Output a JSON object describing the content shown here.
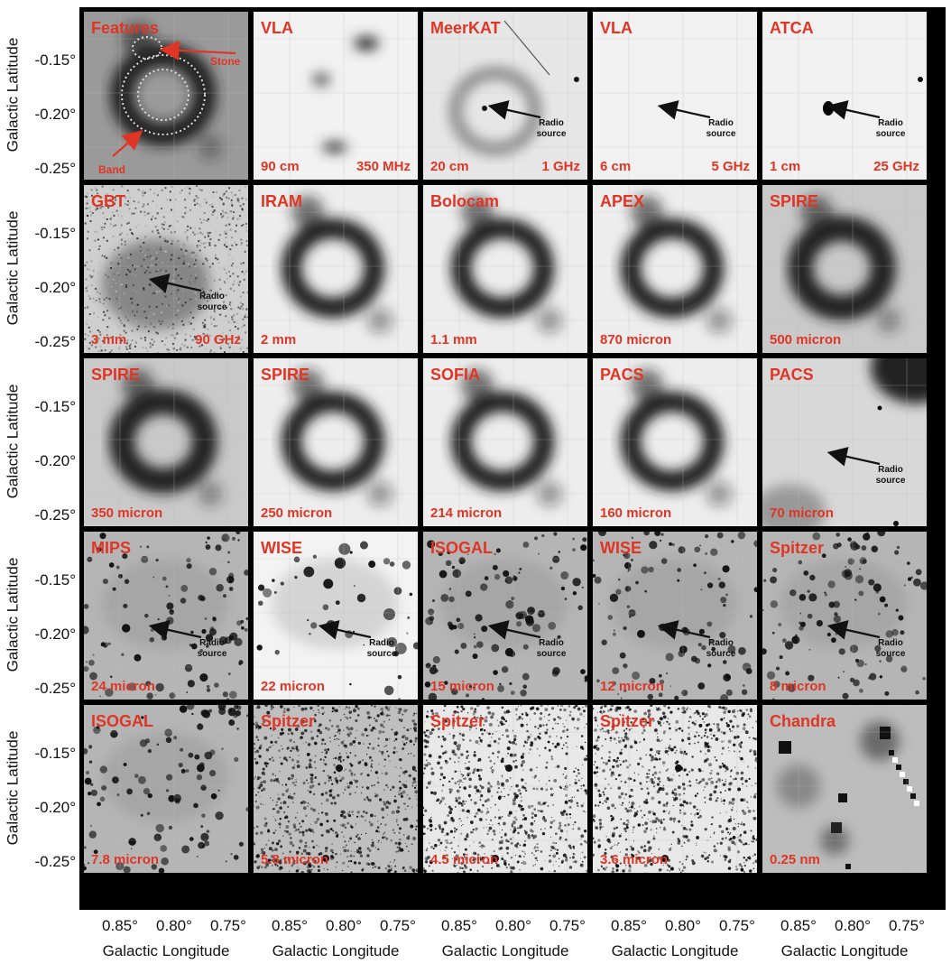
{
  "axes": {
    "ylabel": "Galactic Latitude",
    "xlabel": "Galactic Longitude",
    "yticks": [
      "-0.15°",
      "-0.20°",
      "-0.25°"
    ],
    "xticks": [
      "0.85°",
      "0.80°",
      "0.75°"
    ]
  },
  "annotations": {
    "radio_source": [
      "Radio",
      "source"
    ],
    "stone": "Stone",
    "band": "Band"
  },
  "colors": {
    "label": "#e03524",
    "frame": "#000000"
  },
  "panels": [
    {
      "telescope": "Features",
      "wavelength": "",
      "frequency": "",
      "style": "features",
      "annot": "features"
    },
    {
      "telescope": "VLA",
      "wavelength": "90 cm",
      "frequency": "350 MHz",
      "style": "light",
      "annot": ""
    },
    {
      "telescope": "MeerKAT",
      "wavelength": "20 cm",
      "frequency": "1 GHz",
      "style": "faintring",
      "annot": "radio"
    },
    {
      "telescope": "VLA",
      "wavelength": "6 cm",
      "frequency": "5 GHz",
      "style": "blank",
      "annot": "radio"
    },
    {
      "telescope": "ATCA",
      "wavelength": "1 cm",
      "frequency": "25 GHz",
      "style": "blank",
      "annot": "radio"
    },
    {
      "telescope": "GBT",
      "wavelength": "3 mm",
      "frequency": "90 GHz",
      "style": "noisy",
      "annot": "radio"
    },
    {
      "telescope": "IRAM",
      "wavelength": "2 mm",
      "frequency": "",
      "style": "ring",
      "annot": ""
    },
    {
      "telescope": "Bolocam",
      "wavelength": "1.1 mm",
      "frequency": "",
      "style": "ring",
      "annot": ""
    },
    {
      "telescope": "APEX",
      "wavelength": "870 micron",
      "frequency": "",
      "style": "ring",
      "annot": ""
    },
    {
      "telescope": "SPIRE",
      "wavelength": "500 micron",
      "frequency": "",
      "style": "blurring",
      "annot": ""
    },
    {
      "telescope": "SPIRE",
      "wavelength": "350 micron",
      "frequency": "",
      "style": "blurring",
      "annot": ""
    },
    {
      "telescope": "SPIRE",
      "wavelength": "250 micron",
      "frequency": "",
      "style": "ring",
      "annot": ""
    },
    {
      "telescope": "SOFIA",
      "wavelength": "214 micron",
      "frequency": "",
      "style": "ring",
      "annot": ""
    },
    {
      "telescope": "PACS",
      "wavelength": "160 micron",
      "frequency": "",
      "style": "ring",
      "annot": ""
    },
    {
      "telescope": "PACS",
      "wavelength": "70 micron",
      "frequency": "",
      "style": "haze",
      "annot": "radio"
    },
    {
      "telescope": "MIPS",
      "wavelength": "24 micron",
      "frequency": "",
      "style": "stars",
      "annot": "radio"
    },
    {
      "telescope": "WISE",
      "wavelength": "22 micron",
      "frequency": "",
      "style": "stars",
      "annot": "radio"
    },
    {
      "telescope": "ISOGAL",
      "wavelength": "15 micron",
      "frequency": "",
      "style": "stars",
      "annot": "radio"
    },
    {
      "telescope": "WISE",
      "wavelength": "12 micron",
      "frequency": "",
      "style": "stars",
      "annot": "radio"
    },
    {
      "telescope": "Spitzer",
      "wavelength": "8 micron",
      "frequency": "",
      "style": "stars",
      "annot": "radio"
    },
    {
      "telescope": "ISOGAL",
      "wavelength": "7.8 micron",
      "frequency": "",
      "style": "stars",
      "annot": ""
    },
    {
      "telescope": "Spitzer",
      "wavelength": "5.8 micron",
      "frequency": "",
      "style": "dense",
      "annot": ""
    },
    {
      "telescope": "Spitzer",
      "wavelength": "4.5 micron",
      "frequency": "",
      "style": "dense",
      "annot": ""
    },
    {
      "telescope": "Spitzer",
      "wavelength": "3.6 micron",
      "frequency": "",
      "style": "dense",
      "annot": ""
    },
    {
      "telescope": "Chandra",
      "wavelength": "0.25 nm",
      "frequency": "",
      "style": "chandra",
      "annot": ""
    }
  ]
}
